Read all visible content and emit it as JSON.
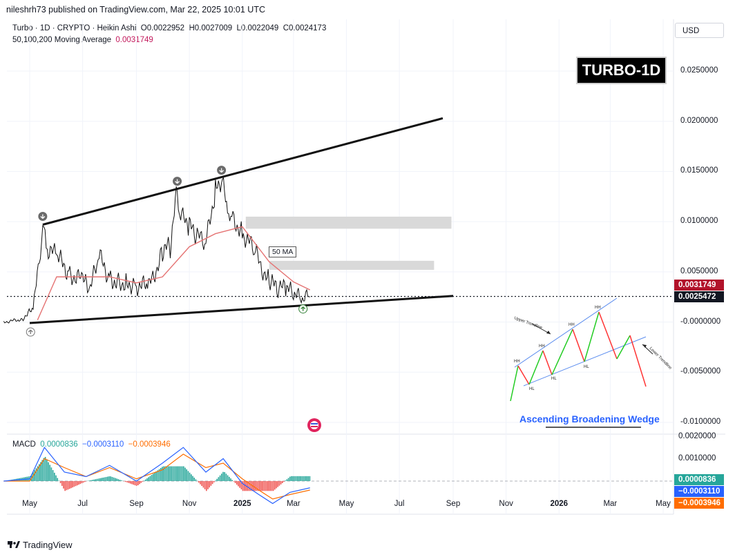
{
  "header": {
    "publisher_line": "nileshrh73 published on TradingView.com, Mar 22, 2025 10:01 UTC",
    "symbol_line": "Turbo · 1D · CRYPTO · Heikin Ashi",
    "ohlc": {
      "o": "O0.0022952",
      "h": "H0.0027009",
      "l": "L0.0022049",
      "c": "C0.0024173"
    },
    "ma_label": "50,100,200 Moving Average",
    "ma_value": "0.0031749",
    "currency_button": "USD"
  },
  "overlay_label": "TURBO-1D",
  "ma_callout": "50 MA",
  "wedge_inset": {
    "title": "Ascending Broadening Wedge",
    "upper_label": "Upper Trendline",
    "lower_label": "Lower Trendline",
    "hh_labels": [
      "HH",
      "HH",
      "HH",
      "HH"
    ],
    "hl_labels": [
      "HL",
      "HL",
      "HL"
    ]
  },
  "price_axis": {
    "ticks": [
      "0.0250000",
      "0.0200000",
      "0.0150000",
      "0.0100000",
      "0.0050000",
      "-0.0000000",
      "-0.0050000",
      "-0.0100000"
    ],
    "ma_tag": "0.0031749",
    "last_tag": "0.0025472"
  },
  "macd": {
    "label": "MACD",
    "v1": "0.0000836",
    "v2": "−0.0003110",
    "v3": "−0.0003946",
    "ticks": [
      "0.0020000",
      "0.0010000"
    ],
    "tag_hist": "0.0000836",
    "tag_macd": "−0.0003110",
    "tag_signal": "−0.0003946"
  },
  "time_axis": [
    {
      "label": "May",
      "bold": false
    },
    {
      "label": "Jul",
      "bold": false
    },
    {
      "label": "Sep",
      "bold": false
    },
    {
      "label": "Nov",
      "bold": false
    },
    {
      "label": "2025",
      "bold": true
    },
    {
      "label": "Mar",
      "bold": false
    },
    {
      "label": "May",
      "bold": false
    },
    {
      "label": "Jul",
      "bold": false
    },
    {
      "label": "Sep",
      "bold": false
    },
    {
      "label": "Nov",
      "bold": false
    },
    {
      "label": "2026",
      "bold": true
    },
    {
      "label": "Mar",
      "bold": false
    },
    {
      "label": "May",
      "bold": false
    }
  ],
  "brand": "TradingView",
  "colors": {
    "ma_red": "#c2185b",
    "last_black": "#131722",
    "macd_green": "#26a69a",
    "macd_blue": "#2962ff",
    "macd_orange": "#ff6d00",
    "zone_gray": "#d9d9d9"
  },
  "chart_data": {
    "type": "line",
    "title": "",
    "xlabel": "",
    "ylabel": "",
    "ylim": [
      -0.01,
      0.025
    ],
    "x_range": [
      "2024-04",
      "2026-05"
    ],
    "series": [
      {
        "name": "Turbo",
        "x": [
          "2024-04-01",
          "2024-04-20",
          "2024-05-05",
          "2024-05-12",
          "2024-05-16",
          "2024-05-20",
          "2024-06-01",
          "2024-06-15",
          "2024-07-01",
          "2024-07-10",
          "2024-07-20",
          "2024-08-01",
          "2024-08-10",
          "2024-08-20",
          "2024-09-01",
          "2024-09-15",
          "2024-10-01",
          "2024-10-10",
          "2024-10-18",
          "2024-10-22",
          "2024-11-01",
          "2024-11-10",
          "2024-11-20",
          "2024-12-01",
          "2024-12-08",
          "2024-12-15",
          "2024-12-20",
          "2025-01-01",
          "2025-01-15",
          "2025-02-01",
          "2025-02-10",
          "2025-02-20",
          "2025-03-01",
          "2025-03-10",
          "2025-03-20"
        ],
        "y": [
          2e-05,
          0.0002,
          0.0012,
          0.006,
          0.0096,
          0.0075,
          0.0065,
          0.005,
          0.004,
          0.0033,
          0.0065,
          0.0045,
          0.004,
          0.004,
          0.0038,
          0.0033,
          0.007,
          0.0075,
          0.0132,
          0.0105,
          0.0095,
          0.0085,
          0.0078,
          0.0132,
          0.0143,
          0.011,
          0.0105,
          0.009,
          0.007,
          0.004,
          0.0033,
          0.0033,
          0.0028,
          0.0023,
          0.0025
        ]
      },
      {
        "name": "50 MA",
        "x": [
          "2024-05-10",
          "2024-06-01",
          "2024-07-01",
          "2024-08-01",
          "2024-09-01",
          "2024-10-01",
          "2024-11-01",
          "2024-12-01",
          "2025-01-01",
          "2025-02-01",
          "2025-03-01",
          "2025-03-20"
        ],
        "y": [
          0.0002,
          0.0045,
          0.0045,
          0.0045,
          0.0039,
          0.0045,
          0.0075,
          0.0088,
          0.0095,
          0.006,
          0.004,
          0.0032
        ]
      }
    ],
    "trendlines": [
      {
        "name": "upper",
        "x": [
          "2024-05-16",
          "2025-08-20"
        ],
        "y": [
          0.0097,
          0.0203
        ]
      },
      {
        "name": "lower",
        "x": [
          "2024-05-01",
          "2025-09-01"
        ],
        "y": [
          -0.0001,
          0.0026
        ]
      }
    ],
    "zones": [
      {
        "x": [
          "2025-01-05",
          "2025-08-30"
        ],
        "y": [
          0.0093,
          0.0105
        ]
      },
      {
        "x": [
          "2025-02-01",
          "2025-08-10"
        ],
        "y": [
          0.0052,
          0.0061
        ]
      }
    ],
    "markers": [
      {
        "type": "down",
        "x": "2024-05-16",
        "y": 0.0097
      },
      {
        "type": "down",
        "x": "2024-10-18",
        "y": 0.0132
      },
      {
        "type": "down",
        "x": "2024-12-08",
        "y": 0.0143
      },
      {
        "type": "up",
        "x": "2024-05-02",
        "y": -0.0001
      },
      {
        "type": "up",
        "x": "2025-03-12",
        "y": 0.0022
      }
    ],
    "last_price": 0.0025472,
    "ma_last": 0.0031749,
    "macd": {
      "ylim": [
        -0.001,
        0.002
      ],
      "x": [
        "2024-04-01",
        "2024-05-01",
        "2024-05-18",
        "2024-06-10",
        "2024-07-05",
        "2024-08-01",
        "2024-09-01",
        "2024-10-01",
        "2024-10-25",
        "2024-11-20",
        "2024-12-10",
        "2025-01-01",
        "2025-01-20",
        "2025-02-05",
        "2025-02-25",
        "2025-03-20"
      ],
      "macd": [
        0.0,
        0.0001,
        0.0015,
        0.0004,
        0.0002,
        0.0007,
        0.0,
        0.0008,
        0.0015,
        0.0004,
        0.001,
        -0.0001,
        -0.0006,
        -0.001,
        -0.0005,
        -0.0003
      ],
      "signal": [
        0.0,
        0.0,
        0.001,
        0.0006,
        0.0002,
        0.0006,
        0.0001,
        0.0005,
        0.0012,
        0.0006,
        0.0008,
        0.0001,
        -0.0004,
        -0.0008,
        -0.0006,
        -0.0004
      ]
    }
  }
}
